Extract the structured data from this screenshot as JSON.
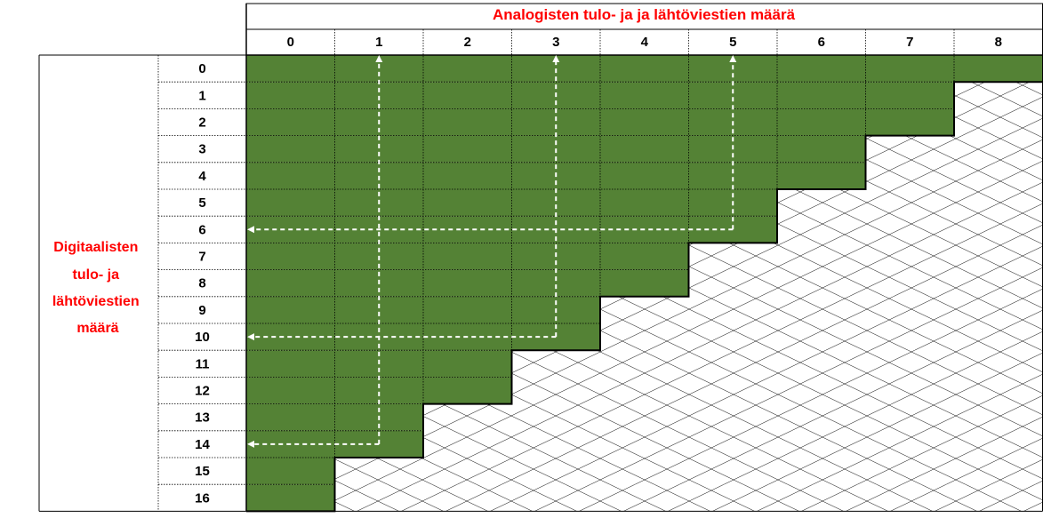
{
  "header": {
    "title": "Analogisten tulo- ja ja lähtöviestien määrä",
    "title_color": "#ff0000"
  },
  "row_header": {
    "lines": [
      "Digitaalisten",
      "tulo- ja",
      "lähtöviestien",
      "määrä"
    ],
    "color": "#ff0000"
  },
  "columns": [
    "0",
    "1",
    "2",
    "3",
    "4",
    "5",
    "6",
    "7",
    "8"
  ],
  "rows": [
    "0",
    "1",
    "2",
    "3",
    "4",
    "5",
    "6",
    "7",
    "8",
    "9",
    "10",
    "11",
    "12",
    "13",
    "14",
    "15",
    "16"
  ],
  "max_digital_by_analog": [
    16,
    14,
    12,
    10,
    8,
    6,
    4,
    2,
    0
  ],
  "examples": [
    {
      "analog": 1,
      "digital": 14
    },
    {
      "analog": 3,
      "digital": 10
    },
    {
      "analog": 5,
      "digital": 6
    }
  ],
  "colors": {
    "allowed_fill": "#548235",
    "arrow": "#ffffff",
    "grid": "#000000",
    "crosshatch": "#000000"
  }
}
